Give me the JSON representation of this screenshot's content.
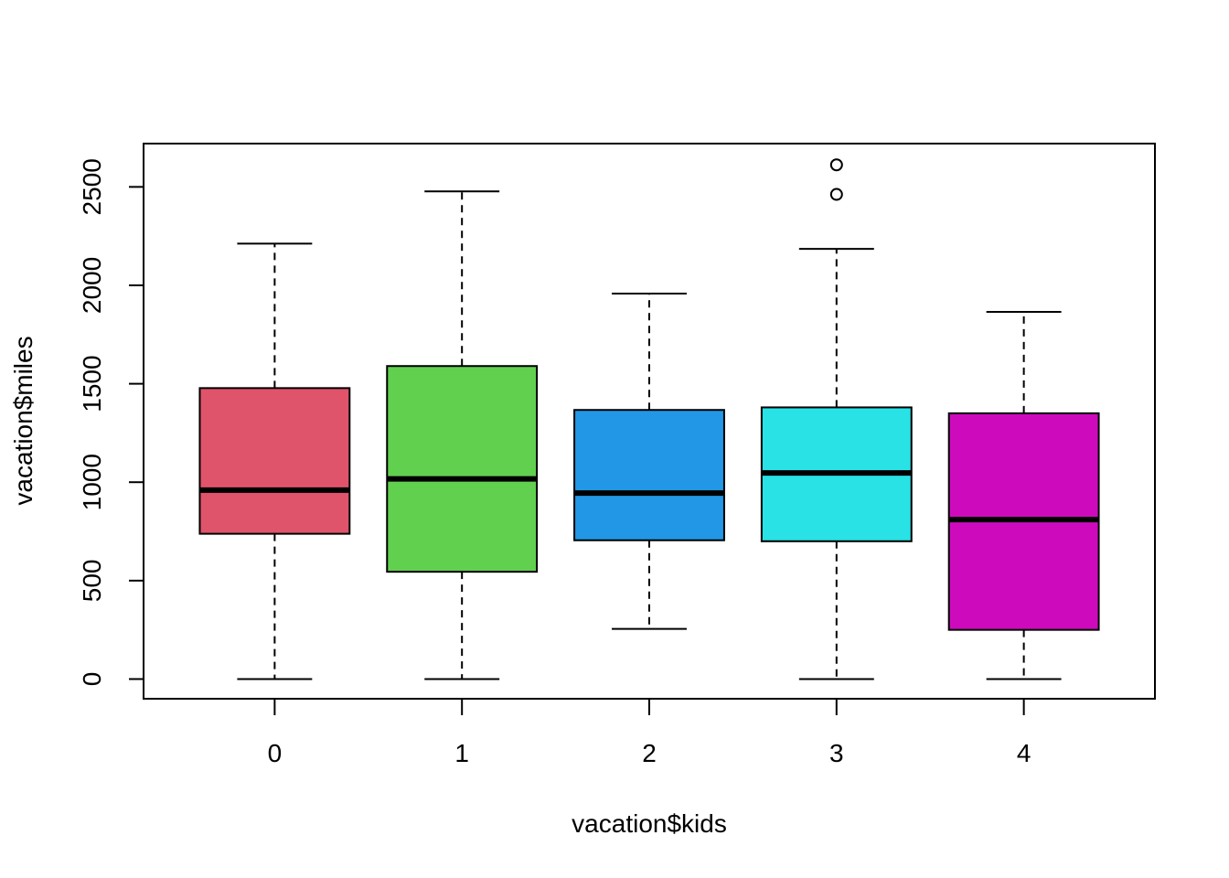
{
  "chart_data": {
    "type": "boxplot",
    "title": "",
    "xlabel": "vacation$kids",
    "ylabel": "vacation$miles",
    "ylim": [
      -100,
      2720
    ],
    "yticks": [
      0,
      500,
      1000,
      1500,
      2000,
      2500
    ],
    "categories": [
      "0",
      "1",
      "2",
      "3",
      "4"
    ],
    "boxes": [
      {
        "category": "0",
        "whisker_low": 0,
        "q1": 738,
        "median": 960,
        "q3": 1478,
        "whisker_high": 2212,
        "outliers": [],
        "color": "#DF536B"
      },
      {
        "category": "1",
        "whisker_low": 0,
        "q1": 545,
        "median": 1017,
        "q3": 1590,
        "whisker_high": 2477,
        "outliers": [],
        "color": "#61D04F"
      },
      {
        "category": "2",
        "whisker_low": 255,
        "q1": 705,
        "median": 945,
        "q3": 1367,
        "whisker_high": 1958,
        "outliers": [],
        "color": "#2297E6"
      },
      {
        "category": "3",
        "whisker_low": 0,
        "q1": 700,
        "median": 1047,
        "q3": 1380,
        "whisker_high": 2185,
        "outliers": [
          2462,
          2612
        ],
        "color": "#28E2E5"
      },
      {
        "category": "4",
        "whisker_low": 0,
        "q1": 250,
        "median": 810,
        "q3": 1350,
        "whisker_high": 1865,
        "outliers": [],
        "color": "#CD0BBC"
      }
    ]
  }
}
